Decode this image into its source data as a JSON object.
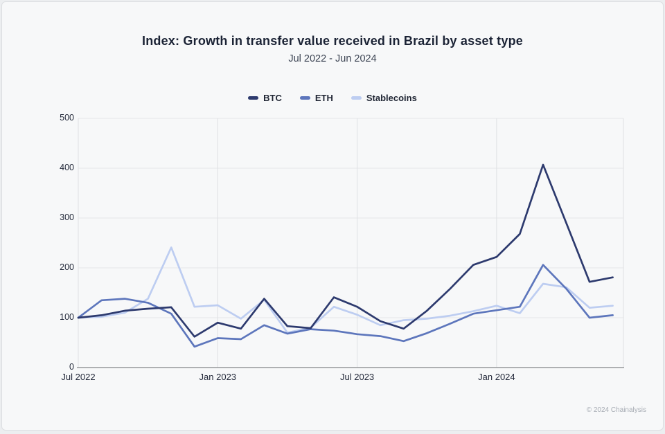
{
  "page": {
    "footer": "© 2024 Chainalysis"
  },
  "chart_data": {
    "type": "line",
    "title": "Index: Growth in transfer value received in Brazil by asset type",
    "subtitle": "Jul 2022 - Jun 2024",
    "grid": true,
    "legend_position": "top-center",
    "ylim": [
      0,
      500
    ],
    "y_ticks": [
      0,
      100,
      200,
      300,
      400,
      500
    ],
    "x": [
      "Jul 2022",
      "Aug 2022",
      "Sep 2022",
      "Oct 2022",
      "Nov 2022",
      "Dec 2022",
      "Jan 2023",
      "Feb 2023",
      "Mar 2023",
      "Apr 2023",
      "May 2023",
      "Jun 2023",
      "Jul 2023",
      "Aug 2023",
      "Sep 2023",
      "Oct 2023",
      "Nov 2023",
      "Dec 2023",
      "Jan 2024",
      "Feb 2024",
      "Mar 2024",
      "Apr 2024",
      "May 2024",
      "Jun 2024"
    ],
    "x_tick_labels": [
      {
        "label": "Jul 2022",
        "index": 0
      },
      {
        "label": "Jan 2023",
        "index": 6
      },
      {
        "label": "Jul 2023",
        "index": 12
      },
      {
        "label": "Jan 2024",
        "index": 18
      }
    ],
    "series": [
      {
        "name": "Stablecoins",
        "color": "#bdcdf1",
        "values": [
          100,
          102,
          110,
          138,
          241,
          122,
          125,
          98,
          136,
          70,
          80,
          122,
          106,
          85,
          95,
          98,
          104,
          113,
          124,
          109,
          168,
          161,
          120,
          124
        ]
      },
      {
        "name": "ETH",
        "color": "#5d76bc",
        "values": [
          100,
          135,
          138,
          130,
          108,
          42,
          59,
          57,
          85,
          68,
          77,
          74,
          67,
          63,
          53,
          69,
          88,
          108,
          115,
          122,
          206,
          158,
          100,
          105
        ]
      },
      {
        "name": "BTC",
        "color": "#2d3a6e",
        "values": [
          100,
          105,
          114,
          118,
          121,
          62,
          90,
          78,
          138,
          83,
          79,
          141,
          122,
          93,
          78,
          114,
          158,
          206,
          222,
          268,
          407,
          290,
          172,
          181
        ]
      }
    ],
    "legend_order": [
      2,
      1,
      0
    ]
  }
}
